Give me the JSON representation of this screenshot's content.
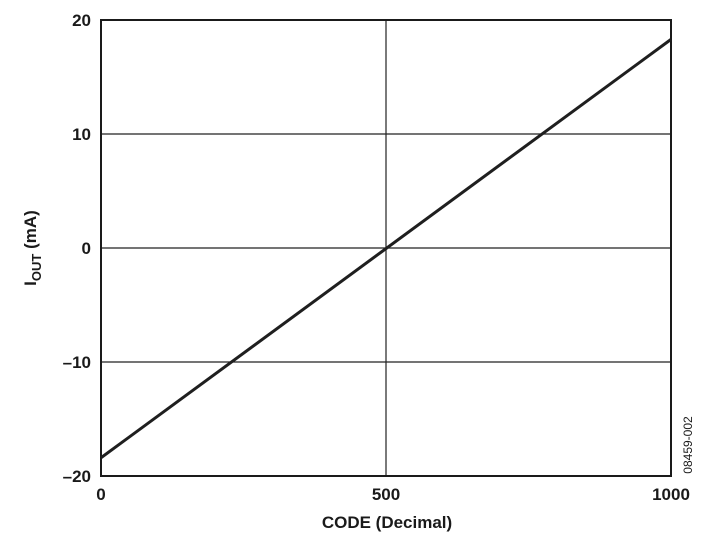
{
  "chart_data": {
    "type": "line",
    "xlabel": "CODE (Decimal)",
    "ylabel_main": "I",
    "ylabel_sub": "OUT",
    "ylabel_unit": " (mA)",
    "xlim": [
      0,
      1000
    ],
    "ylim": [
      -20,
      20
    ],
    "x_ticks": [
      0,
      500,
      1000
    ],
    "x_tick_labels": [
      "0",
      "500",
      "1000"
    ],
    "y_ticks": [
      -20,
      -10,
      0,
      10,
      20
    ],
    "y_tick_labels": [
      "–20",
      "–10",
      "0",
      "10",
      "20"
    ],
    "grid": true,
    "series": [
      {
        "x": [
          0,
          1000
        ],
        "y": [
          -18.4,
          18.3
        ]
      }
    ],
    "figure_id": "08459-002",
    "line_color": "#1f1f1f",
    "grid_color": "#222222"
  }
}
